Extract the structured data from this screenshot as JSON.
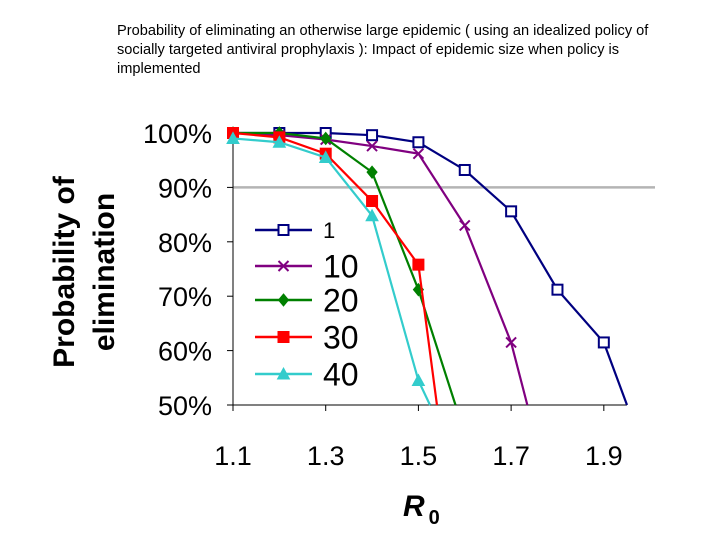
{
  "title": "Probability of eliminating an otherwise large epidemic ( using an idealized policy of socially targeted antiviral prophylaxis ): Impact of epidemic size when policy is implemented",
  "chart_data": {
    "type": "line",
    "ylabel": "Probability of elimination",
    "xlabel_main": "R",
    "xlabel_sub": "0",
    "xlim": [
      1.1,
      1.95
    ],
    "ylim": [
      50,
      100
    ],
    "x_ticks": [
      "1.1",
      "1.3",
      "1.5",
      "1.7",
      "1.9"
    ],
    "y_ticks": [
      "50%",
      "60%",
      "70%",
      "80%",
      "90%",
      "100%"
    ],
    "reference_line": {
      "y": 90,
      "color": "#b4b4b4"
    },
    "legend_position": "center-left",
    "series": [
      {
        "name": "1",
        "color": "#000080",
        "marker": "open-square",
        "x": [
          1.1,
          1.2,
          1.3,
          1.4,
          1.5,
          1.6,
          1.7,
          1.8,
          1.9
        ],
        "y": [
          100,
          100,
          100,
          99.6,
          98.3,
          93.2,
          85.6,
          71.2,
          61.5
        ],
        "tail": [
          1.95,
          50
        ]
      },
      {
        "name": "10",
        "color": "#800080",
        "marker": "x",
        "x": [
          1.1,
          1.2,
          1.3,
          1.4,
          1.5,
          1.6,
          1.7
        ],
        "y": [
          100,
          99.6,
          98.8,
          97.6,
          96.2,
          83,
          61.5
        ],
        "tail": [
          1.735,
          50
        ]
      },
      {
        "name": "20",
        "color": "#008000",
        "marker": "diamond",
        "x": [
          1.1,
          1.2,
          1.3,
          1.4,
          1.5
        ],
        "y": [
          100,
          100,
          99,
          92.8,
          71.2
        ],
        "tail": [
          1.58,
          50
        ]
      },
      {
        "name": "30",
        "color": "#ff0000",
        "marker": "filled-square",
        "x": [
          1.1,
          1.2,
          1.3,
          1.4,
          1.5
        ],
        "y": [
          100,
          99.2,
          96.2,
          87.5,
          75.8
        ],
        "tail": [
          1.54,
          50
        ]
      },
      {
        "name": "40",
        "color": "#33cccc",
        "marker": "triangle",
        "x": [
          1.1,
          1.2,
          1.3,
          1.4,
          1.5
        ],
        "y": [
          99,
          98.3,
          95.5,
          84.8,
          54.5
        ],
        "tail": [
          1.525,
          50
        ]
      }
    ]
  }
}
